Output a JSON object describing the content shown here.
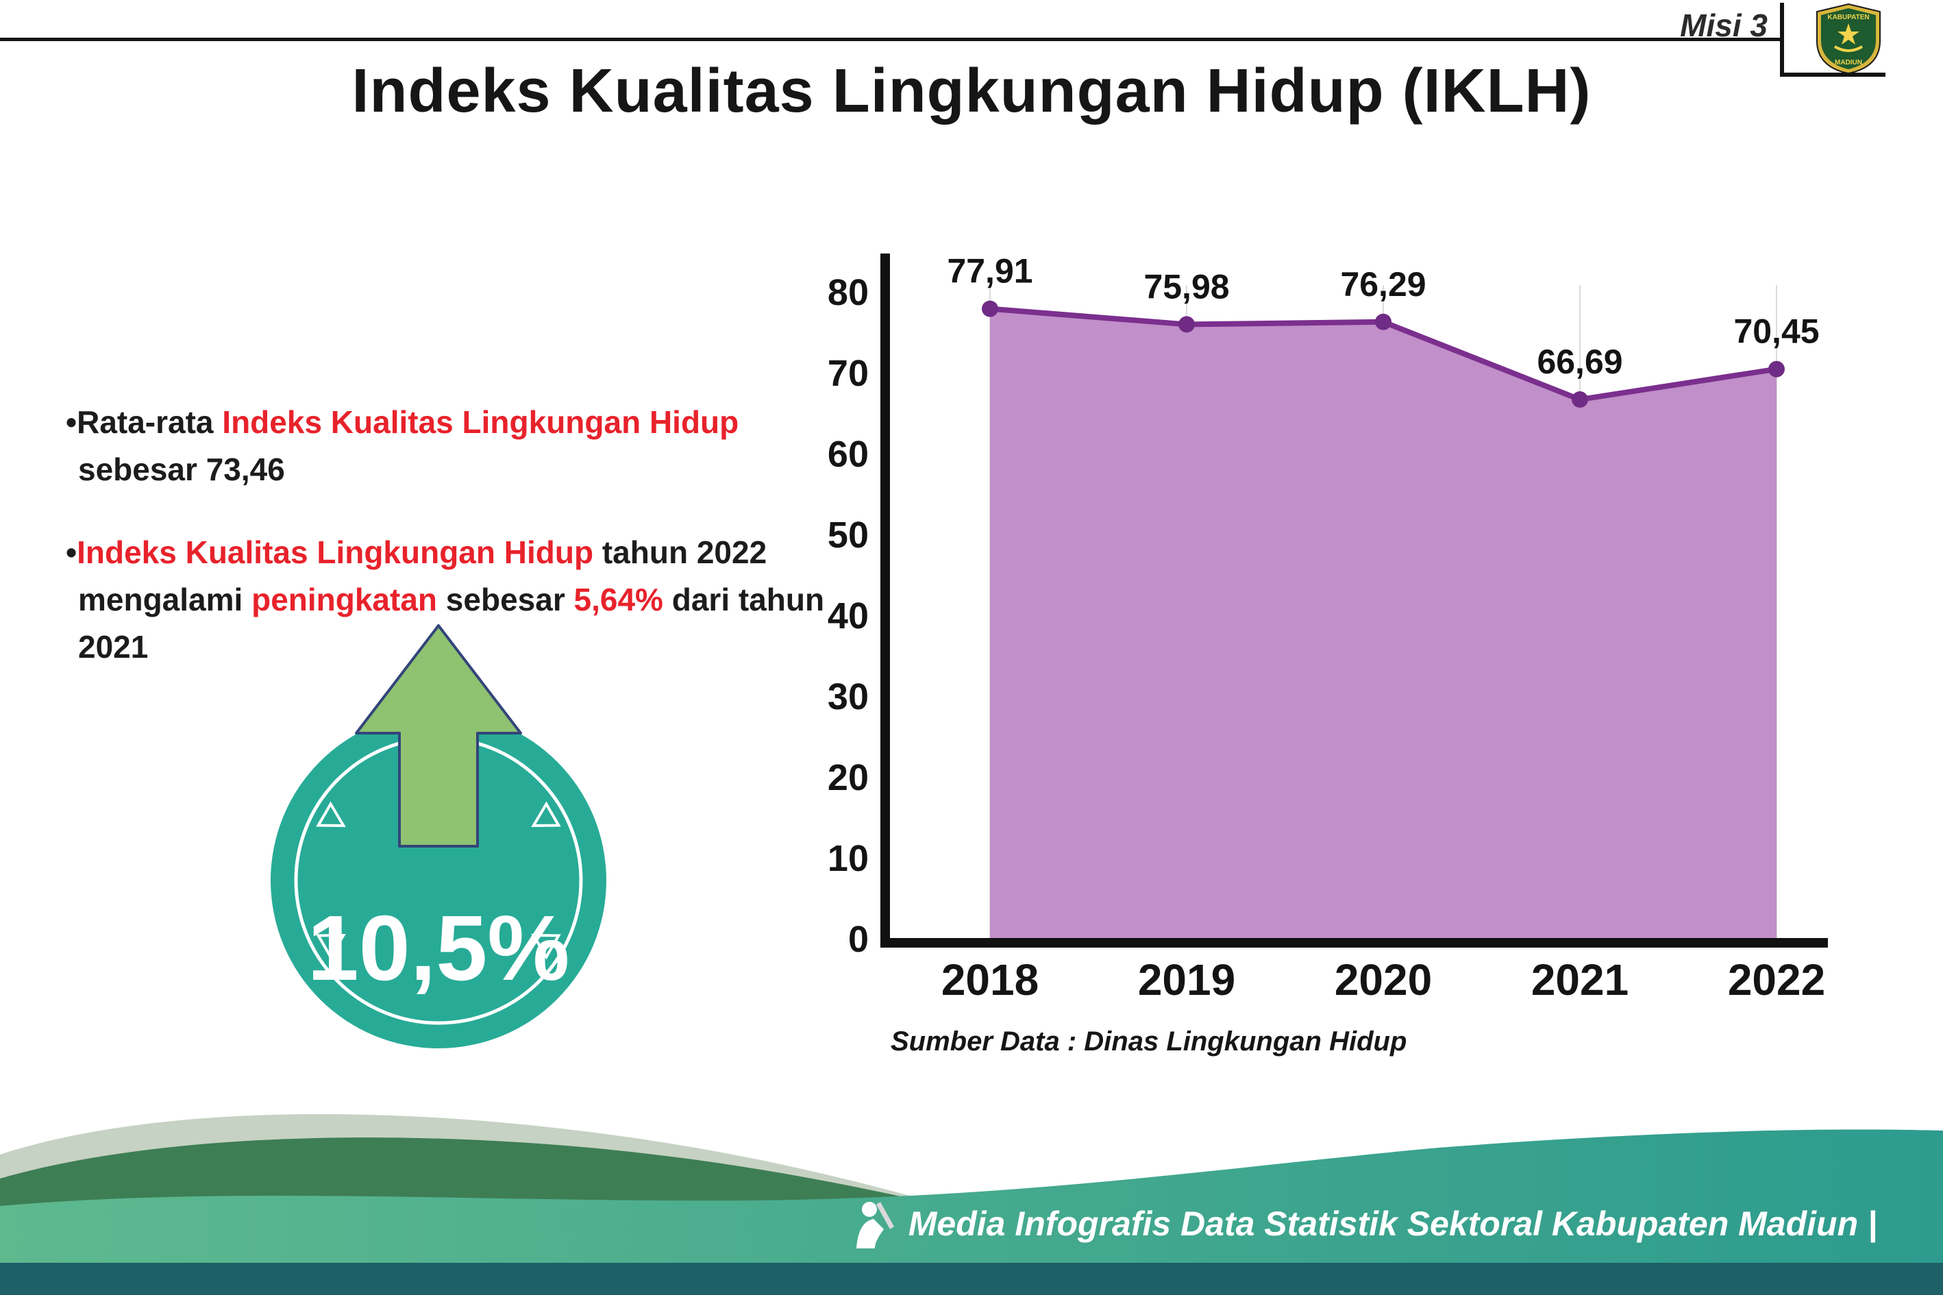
{
  "header": {
    "misi_label": "Misi 3",
    "title": "Indeks Kualitas Lingkungan Hidup (IKLH)",
    "logo": {
      "line1": "KABUPATEN",
      "line2": "MADIUN"
    }
  },
  "bullets": [
    {
      "segments": [
        {
          "text": "•Rata-rata ",
          "em": false
        },
        {
          "text": "Indeks Kualitas Lingkungan Hidup",
          "em": true
        },
        {
          "text": " sebesar 73,46",
          "em": false
        }
      ]
    },
    {
      "segments": [
        {
          "text": "•",
          "em": false
        },
        {
          "text": "Indeks Kualitas Lingkungan Hidup",
          "em": true
        },
        {
          "text": " tahun 2022 mengalami ",
          "em": false
        },
        {
          "text": "peningkatan",
          "em": true
        },
        {
          "text": " sebesar ",
          "em": false
        },
        {
          "text": "5,64%",
          "em": true
        },
        {
          "text": " dari tahun 2021",
          "em": false
        }
      ]
    }
  ],
  "badge": {
    "value": "10,5%"
  },
  "chart_data": {
    "type": "area",
    "title": "Indeks Kualitas Lingkungan Hidup (IKLH)",
    "categories": [
      "2018",
      "2019",
      "2020",
      "2021",
      "2022"
    ],
    "values": [
      77.91,
      75.98,
      76.29,
      66.69,
      70.45
    ],
    "point_labels": [
      "77,91",
      "75,98",
      "76,29",
      "66,69",
      "70,45"
    ],
    "xlabel": "",
    "ylabel": "",
    "ylim": [
      0,
      80
    ],
    "yticks": [
      0,
      10,
      20,
      30,
      40,
      50,
      60,
      70,
      80
    ],
    "grid": "vertical-light",
    "legend": "none",
    "source_note": "Sumber Data : Dinas Lingkungan Hidup",
    "colors": {
      "area_fill": "#c18fc9",
      "line": "#7b2f8e",
      "point": "#6f2b85",
      "axis": "#111111",
      "grid": "#dcdcdc"
    }
  },
  "footer": {
    "credit": "Media Infografis Data Statistik Sektoral Kabupaten Madiun |"
  },
  "colors": {
    "accent_red": "#e8222b",
    "text_black": "#1c1c1c",
    "badge_teal": "#27ab97",
    "arrow_green": "#8fc271",
    "footer_pale": "#c6d2c3",
    "footer_dark_green": "#3e7e55",
    "footer_teal_from": "#5eb98f",
    "footer_teal_to": "#2d9b8e",
    "footer_strip": "#1d6066"
  }
}
